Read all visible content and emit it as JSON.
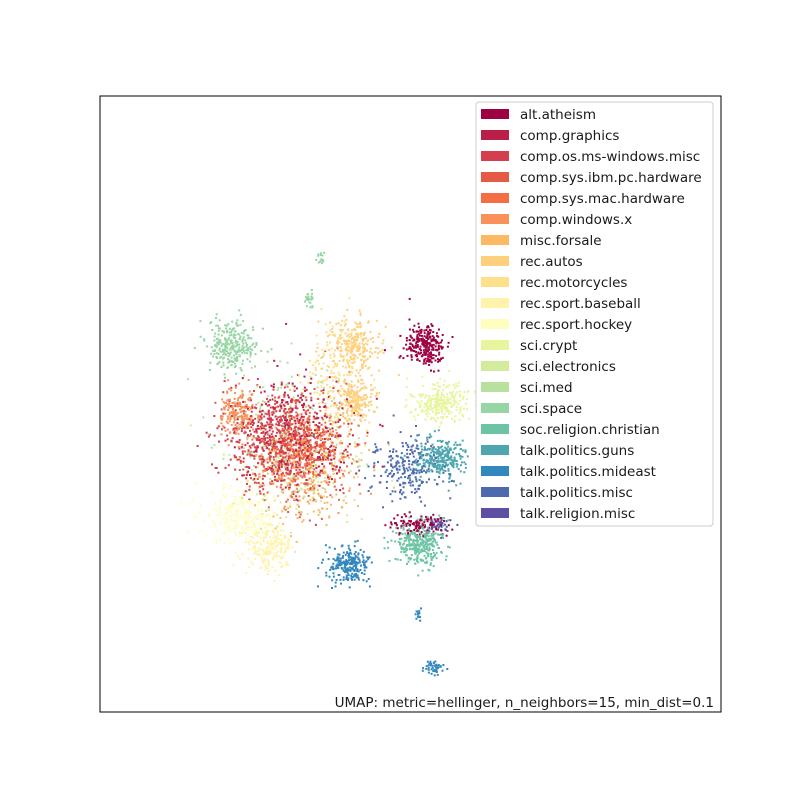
{
  "chart_data": {
    "type": "scatter",
    "title": "",
    "xlabel": "",
    "ylabel": "",
    "xticks": [],
    "yticks": [],
    "grid": false,
    "legend_placement": "upper-right",
    "annotation": "UMAP: metric=hellinger, n_neighbors=15, min_dist=0.1",
    "categories": [
      {
        "name": "alt.atheism",
        "color": "#9e0142"
      },
      {
        "name": "comp.graphics",
        "color": "#b91f48"
      },
      {
        "name": "comp.os.ms-windows.misc",
        "color": "#d53e4f"
      },
      {
        "name": "comp.sys.ibm.pc.hardware",
        "color": "#e55a47"
      },
      {
        "name": "comp.sys.mac.hardware",
        "color": "#f46d43"
      },
      {
        "name": "comp.windows.x",
        "color": "#f8925a"
      },
      {
        "name": "misc.forsale",
        "color": "#fdb864"
      },
      {
        "name": "rec.autos",
        "color": "#fed07e"
      },
      {
        "name": "rec.motorcycles",
        "color": "#fee08b"
      },
      {
        "name": "rec.sport.baseball",
        "color": "#fff3ac"
      },
      {
        "name": "rec.sport.hockey",
        "color": "#fefebf"
      },
      {
        "name": "sci.crypt",
        "color": "#e8f59c"
      },
      {
        "name": "sci.electronics",
        "color": "#d3ec9b"
      },
      {
        "name": "sci.med",
        "color": "#b8e1a0"
      },
      {
        "name": "sci.space",
        "color": "#98d5a4"
      },
      {
        "name": "soc.religion.christian",
        "color": "#6dc4a5"
      },
      {
        "name": "talk.politics.guns",
        "color": "#4ea6b0"
      },
      {
        "name": "talk.politics.mideast",
        "color": "#3288bd"
      },
      {
        "name": "talk.politics.misc",
        "color": "#4d6aaf"
      },
      {
        "name": "talk.religion.misc",
        "color": "#5e4fa2"
      }
    ],
    "clusters": [
      {
        "category": 0,
        "cx": 425,
        "cy": 345,
        "rx": 18,
        "ry": 20,
        "n": 260
      },
      {
        "category": 0,
        "cx": 420,
        "cy": 525,
        "rx": 25,
        "ry": 10,
        "n": 110
      },
      {
        "category": 1,
        "cx": 300,
        "cy": 430,
        "rx": 50,
        "ry": 50,
        "n": 320
      },
      {
        "category": 2,
        "cx": 275,
        "cy": 440,
        "rx": 45,
        "ry": 45,
        "n": 520
      },
      {
        "category": 3,
        "cx": 295,
        "cy": 455,
        "rx": 45,
        "ry": 45,
        "n": 300
      },
      {
        "category": 4,
        "cx": 310,
        "cy": 445,
        "rx": 35,
        "ry": 40,
        "n": 230
      },
      {
        "category": 5,
        "cx": 238,
        "cy": 412,
        "rx": 15,
        "ry": 22,
        "n": 190
      },
      {
        "category": 5,
        "cx": 300,
        "cy": 465,
        "rx": 45,
        "ry": 45,
        "n": 120
      },
      {
        "category": 6,
        "cx": 310,
        "cy": 470,
        "rx": 55,
        "ry": 55,
        "n": 220
      },
      {
        "category": 7,
        "cx": 355,
        "cy": 345,
        "rx": 22,
        "ry": 25,
        "n": 230
      },
      {
        "category": 7,
        "cx": 355,
        "cy": 400,
        "rx": 18,
        "ry": 18,
        "n": 200
      },
      {
        "category": 8,
        "cx": 335,
        "cy": 375,
        "rx": 30,
        "ry": 45,
        "n": 170
      },
      {
        "category": 9,
        "cx": 270,
        "cy": 545,
        "rx": 22,
        "ry": 22,
        "n": 230
      },
      {
        "category": 10,
        "cx": 240,
        "cy": 515,
        "rx": 32,
        "ry": 25,
        "n": 260
      },
      {
        "category": 11,
        "cx": 440,
        "cy": 403,
        "rx": 25,
        "ry": 18,
        "n": 260
      },
      {
        "category": 12,
        "cx": 300,
        "cy": 470,
        "rx": 55,
        "ry": 55,
        "n": 120
      },
      {
        "category": 13,
        "cx": 290,
        "cy": 420,
        "rx": 70,
        "ry": 60,
        "n": 140
      },
      {
        "category": 14,
        "cx": 232,
        "cy": 345,
        "rx": 22,
        "ry": 22,
        "n": 280
      },
      {
        "category": 14,
        "cx": 310,
        "cy": 300,
        "rx": 6,
        "ry": 8,
        "n": 25
      },
      {
        "category": 14,
        "cx": 320,
        "cy": 258,
        "rx": 4,
        "ry": 6,
        "n": 15
      },
      {
        "category": 15,
        "cx": 420,
        "cy": 545,
        "rx": 22,
        "ry": 18,
        "n": 320
      },
      {
        "category": 16,
        "cx": 440,
        "cy": 458,
        "rx": 22,
        "ry": 18,
        "n": 280
      },
      {
        "category": 17,
        "cx": 350,
        "cy": 565,
        "rx": 18,
        "ry": 18,
        "n": 240
      },
      {
        "category": 17,
        "cx": 418,
        "cy": 615,
        "rx": 3,
        "ry": 8,
        "n": 15
      },
      {
        "category": 17,
        "cx": 435,
        "cy": 668,
        "rx": 9,
        "ry": 6,
        "n": 45
      },
      {
        "category": 18,
        "cx": 405,
        "cy": 470,
        "rx": 30,
        "ry": 28,
        "n": 220
      },
      {
        "category": 19,
        "cx": 440,
        "cy": 525,
        "rx": 12,
        "ry": 8,
        "n": 40
      }
    ]
  }
}
